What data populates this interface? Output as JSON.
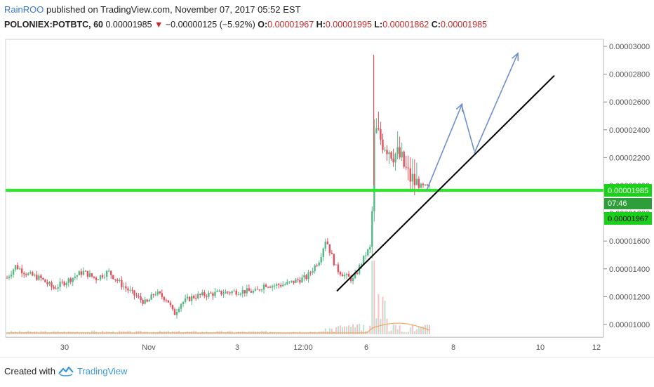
{
  "header": {
    "user": "RainROO",
    "published_text": "published on TradingView.com, November 07, 2017 05:52 EST",
    "symbol": "POLONIEX:POTBTC, 60",
    "last_price": "0.00001985",
    "arrow": "▼",
    "change": "−0.00000125 (−5.92%)",
    "open_label": "O:",
    "open_value": "0.00001967",
    "high_label": "H:",
    "high_value": "0.00001995",
    "low_label": "L:",
    "low_value": "0.00001862",
    "close_label": "C:",
    "close_value": "0.00001985"
  },
  "price_tags": {
    "current": "0.00001985",
    "countdown": "07:46",
    "open": "0.00001967"
  },
  "footer": {
    "created_with": "Created with",
    "brand": "TradingView",
    "logo_icon": "tradingview-cloud-icon"
  },
  "colors": {
    "up": "#53b987",
    "down": "#eb4d5c",
    "support_line": "#22ee22",
    "tag_green": "#19d119",
    "arrow_blue": "#6f8fce",
    "trendline": "#000000",
    "volume_ma": "#f2a25a"
  },
  "chart_data": {
    "type": "candlestick",
    "y_axis_ticks": [
      1e-05,
      1.2e-05,
      1.4e-05,
      1.6e-05,
      1.8e-05,
      2e-05,
      2.2e-05,
      2.4e-05,
      2.6e-05,
      2.8e-05,
      3e-05
    ],
    "y_axis_labels": [
      "0.00001000",
      "0.00001200",
      "0.00001400",
      "0.00001600",
      "0.00001800",
      "0.00002000",
      "0.00002200",
      "0.00002400",
      "0.00002600",
      "0.00002800",
      "0.00003000"
    ],
    "x_axis_labels": [
      "30",
      "Nov",
      "3",
      "12:00",
      "6",
      "8",
      "10",
      "12"
    ],
    "support_level": 1.985e-05,
    "trendline": [
      [
        0.16,
        1.24e-05
      ],
      [
        0.965,
        2.79e-05
      ]
    ],
    "projection_arrows": [
      [
        [
          0.692,
          1.985e-05
        ],
        [
          0.765,
          2.585e-05
        ]
      ],
      [
        [
          0.765,
          2.585e-05
        ],
        [
          0.79,
          2.25e-05
        ]
      ],
      [
        [
          0.79,
          2.25e-05
        ],
        [
          0.88,
          2.95e-05
        ]
      ]
    ],
    "price_path": [
      [
        0.0,
        1.335e-05
      ],
      [
        0.02,
        1.42e-05
      ],
      [
        0.05,
        1.36e-05
      ],
      [
        0.08,
        1.33e-05
      ],
      [
        0.11,
        1.26e-05
      ],
      [
        0.14,
        1.31e-05
      ],
      [
        0.18,
        1.38e-05
      ],
      [
        0.21,
        1.33e-05
      ],
      [
        0.24,
        1.38e-05
      ],
      [
        0.27,
        1.29e-05
      ],
      [
        0.3,
        1.215e-05
      ],
      [
        0.33,
        1.15e-05
      ],
      [
        0.35,
        1.23e-05
      ],
      [
        0.38,
        1.18e-05
      ],
      [
        0.395,
        1.07e-05
      ],
      [
        0.41,
        1.15e-05
      ],
      [
        0.44,
        1.2e-05
      ],
      [
        0.47,
        1.215e-05
      ],
      [
        0.5,
        1.225e-05
      ],
      [
        0.53,
        1.235e-05
      ],
      [
        0.56,
        1.24e-05
      ],
      [
        0.59,
        1.235e-05
      ],
      [
        0.61,
        1.29e-05
      ],
      [
        0.63,
        1.28e-05
      ],
      [
        0.66,
        1.29e-05
      ],
      [
        0.69,
        1.32e-05
      ],
      [
        0.71,
        1.34e-05
      ],
      [
        0.74,
        1.47e-05
      ],
      [
        0.755,
        1.62e-05
      ],
      [
        0.765,
        1.52e-05
      ],
      [
        0.78,
        1.4e-05
      ],
      [
        0.8,
        1.35e-05
      ],
      [
        0.82,
        1.32e-05
      ],
      [
        0.835,
        1.42e-05
      ],
      [
        0.85,
        1.51e-05
      ],
      [
        0.862,
        1.56e-05
      ],
      [
        0.87,
        2.4e-05
      ],
      [
        0.88,
        2.35e-05
      ],
      [
        0.895,
        2.3e-05
      ],
      [
        0.91,
        2.25e-05
      ],
      [
        0.93,
        2.2e-05
      ],
      [
        0.95,
        2.07e-05
      ],
      [
        0.965,
        2.02e-05
      ],
      [
        0.98,
        1.99e-05
      ],
      [
        1.0,
        1.985e-05
      ]
    ],
    "wick_spike": 2.94e-05,
    "wick_spike_pos": 0.868,
    "volume_spike_pos": 0.868
  }
}
